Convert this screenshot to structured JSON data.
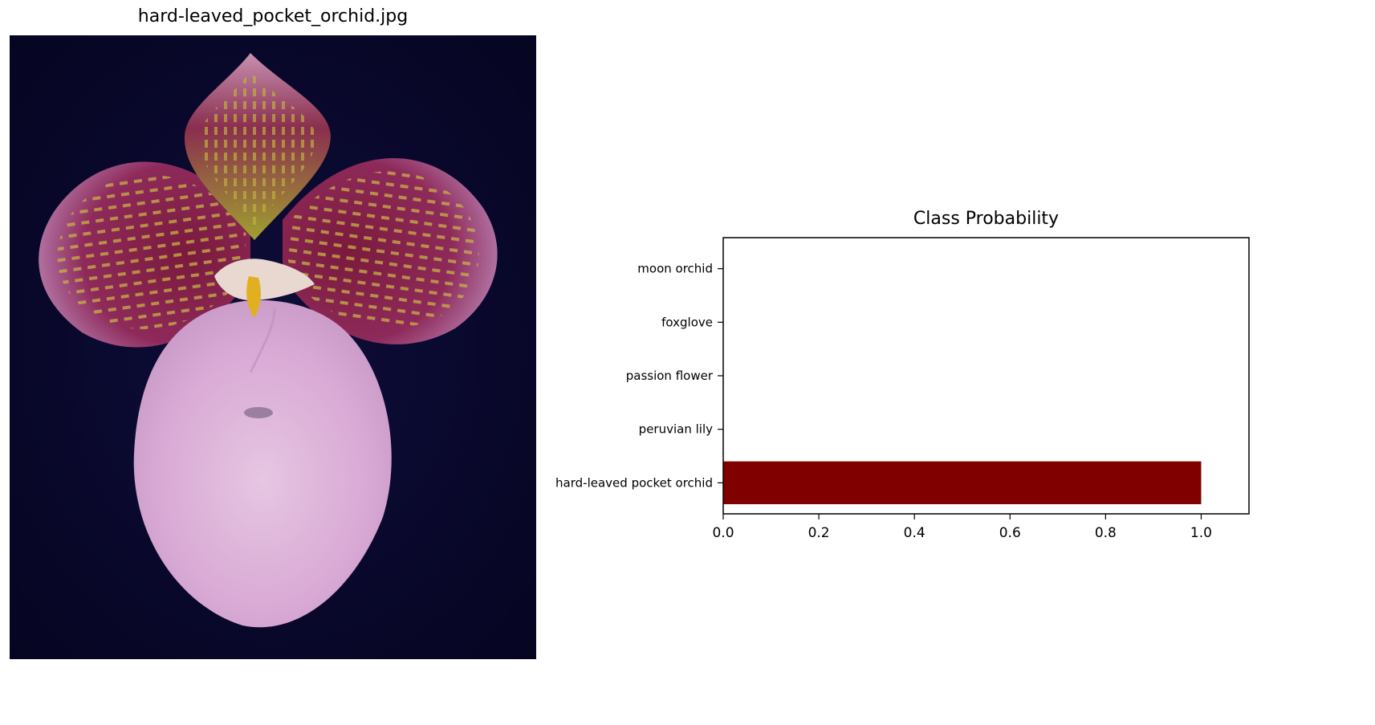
{
  "image_title": "hard-leaved_pocket_orchid.jpg",
  "image_subject": "orchid-photo",
  "chart_data": {
    "type": "bar",
    "orientation": "horizontal",
    "title": "Class Probability",
    "categories": [
      "hard-leaved pocket orchid",
      "peruvian lily",
      "passion flower",
      "foxglove",
      "moon orchid"
    ],
    "values": [
      1.0,
      0.0,
      0.0,
      0.0,
      0.0
    ],
    "xlim": [
      0.0,
      1.1
    ],
    "xticks": [
      0.0,
      0.2,
      0.4,
      0.6,
      0.8,
      1.0
    ],
    "xtick_labels": [
      "0.0",
      "0.2",
      "0.4",
      "0.6",
      "0.8",
      "1.0"
    ],
    "xlabel": "",
    "ylabel": "",
    "grid": false,
    "bar_color": "#800000"
  }
}
